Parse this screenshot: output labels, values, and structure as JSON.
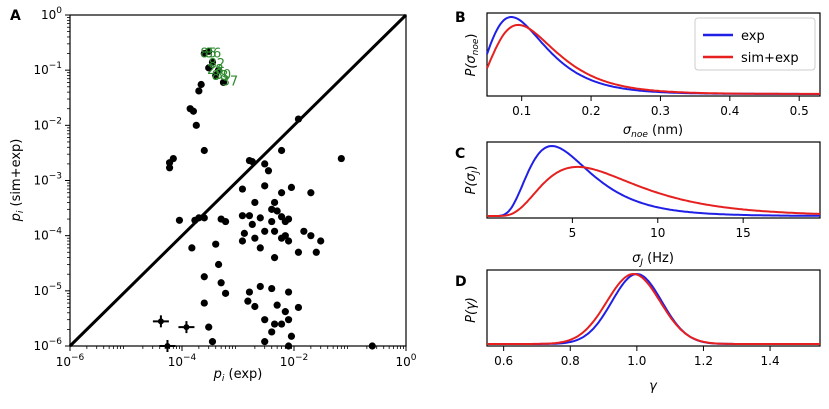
{
  "chart_data": [
    {
      "panel": "A",
      "type": "scatter",
      "xscale": "log",
      "yscale": "log",
      "xlim": [
        1e-06,
        1
      ],
      "ylim": [
        1e-06,
        1
      ],
      "xticks": [
        "10^-6",
        "10^-4",
        "10^-2",
        "10^0"
      ],
      "yticks": [
        "10^-6",
        "10^-5",
        "10^-4",
        "10^-3",
        "10^-2",
        "10^-1",
        "10^0"
      ],
      "xlabel_main": "p",
      "xlabel_sub": "i",
      "xlabel_tail": " (exp)",
      "ylabel_main": "p",
      "ylabel_sub": "i",
      "ylabel_tail": " (sim+exp)",
      "diagonal": true,
      "points": [
        [
          0.00025,
          0.2
        ],
        [
          0.0003,
          0.22
        ],
        [
          0.00035,
          0.14
        ],
        [
          0.0003,
          0.11
        ],
        [
          0.00045,
          0.1
        ],
        [
          0.0004,
          0.08
        ],
        [
          0.00055,
          0.06
        ],
        [
          0.00022,
          0.055
        ],
        [
          0.0002,
          0.042
        ],
        [
          0.00014,
          0.02
        ],
        [
          0.00016,
          0.018
        ],
        [
          0.00018,
          0.01
        ],
        [
          0.00025,
          0.0035
        ],
        [
          0.012,
          0.013
        ],
        [
          7e-05,
          0.0025
        ],
        [
          6e-05,
          0.0021
        ],
        [
          6e-05,
          0.0017
        ],
        [
          0.07,
          0.0025
        ],
        [
          0.0016,
          0.0023
        ],
        [
          0.0018,
          0.0022
        ],
        [
          0.003,
          0.002
        ],
        [
          0.006,
          0.0035
        ],
        [
          0.0035,
          0.0015
        ],
        [
          0.0012,
          0.0007
        ],
        [
          0.003,
          0.0008
        ],
        [
          0.006,
          0.0006
        ],
        [
          0.002,
          0.0004
        ],
        [
          0.0045,
          0.0004
        ],
        [
          0.009,
          0.00075
        ],
        [
          0.02,
          0.0006
        ],
        [
          0.004,
          0.0003
        ],
        [
          9e-05,
          0.00019
        ],
        [
          0.00017,
          0.00019
        ],
        [
          0.00025,
          0.00021
        ],
        [
          0.0002,
          0.00021
        ],
        [
          0.0006,
          0.00018
        ],
        [
          0.0005,
          0.0002
        ],
        [
          0.0012,
          0.00023
        ],
        [
          0.0013,
          0.00011
        ],
        [
          0.0016,
          0.00023
        ],
        [
          0.0018,
          0.00016
        ],
        [
          0.0025,
          0.00021
        ],
        [
          0.003,
          0.00012
        ],
        [
          0.004,
          0.00018
        ],
        [
          0.005,
          0.00028
        ],
        [
          0.006,
          0.00022
        ],
        [
          0.007,
          0.00018
        ],
        [
          0.008,
          0.0002
        ],
        [
          0.00015,
          6e-05
        ],
        [
          0.0004,
          7e-05
        ],
        [
          0.0012,
          8e-05
        ],
        [
          0.002,
          9e-05
        ],
        [
          0.0025,
          6e-05
        ],
        [
          0.0045,
          0.00012
        ],
        [
          0.006,
          9e-05
        ],
        [
          0.007,
          0.0001
        ],
        [
          0.008,
          8e-05
        ],
        [
          0.015,
          0.00012
        ],
        [
          0.02,
          0.0001
        ],
        [
          0.012,
          5e-05
        ],
        [
          0.0045,
          4e-05
        ],
        [
          0.03,
          8e-05
        ],
        [
          0.025,
          5e-05
        ],
        [
          0.00045,
          3e-05
        ],
        [
          0.00025,
          1.8e-05
        ],
        [
          0.0005,
          1.4e-05
        ],
        [
          0.0025,
          1.2e-05
        ],
        [
          0.0006,
          9e-06
        ],
        [
          0.0016,
          9.5e-06
        ],
        [
          0.004,
          1.1e-05
        ],
        [
          0.008,
          9.5e-06
        ],
        [
          0.00025,
          6e-06
        ],
        [
          0.0015,
          6.5e-06
        ],
        [
          0.002,
          5.2e-06
        ],
        [
          0.005,
          5.5e-06
        ],
        [
          0.007,
          4.2e-06
        ],
        [
          0.012,
          5e-06
        ],
        [
          0.008,
          3e-06
        ],
        [
          0.003,
          3e-06
        ],
        [
          0.006,
          2.5e-06
        ],
        [
          0.0045,
          2.5e-06
        ],
        [
          0.0003,
          2.2e-06
        ],
        [
          0.004,
          1.8e-06
        ],
        [
          0.009,
          1.5e-06
        ],
        [
          0.003,
          1.2e-06
        ],
        [
          0.00035,
          1.2e-06
        ],
        [
          0.008,
          1e-06
        ],
        [
          0.25,
          1e-06
        ]
      ],
      "error_points": [
        [
          4.2e-05,
          2.8e-06
        ],
        [
          5.5e-05,
          1e-06
        ],
        [
          0.00012,
          2.2e-06
        ]
      ],
      "labels": [
        {
          "text": "85",
          "x": 0.00025,
          "y": 0.2
        },
        {
          "text": "86",
          "x": 0.0003,
          "y": 0.2
        },
        {
          "text": "82",
          "x": 0.00035,
          "y": 0.13
        },
        {
          "text": "28",
          "x": 0.00033,
          "y": 0.1
        },
        {
          "text": "88",
          "x": 0.0004,
          "y": 0.078
        },
        {
          "text": "30",
          "x": 0.00045,
          "y": 0.082
        },
        {
          "text": "37",
          "x": 0.0006,
          "y": 0.062
        }
      ]
    },
    {
      "panel": "B",
      "type": "line",
      "xlabel_main": "σ",
      "xlabel_sub": "noe",
      "xlabel_tail": " (nm)",
      "ylabel": "P(σnoe)",
      "ylabel_main": "P(σ",
      "ylabel_sub": "noe",
      "ylabel_tail": ")",
      "xlim": [
        0.05,
        0.53
      ],
      "xticks": [
        "0.1",
        "0.2",
        "0.3",
        "0.4",
        "0.5"
      ],
      "xtick_values": [
        0.1,
        0.2,
        0.3,
        0.4,
        0.5
      ],
      "series": [
        {
          "name": "exp",
          "color": "#1f1fe6",
          "peak": 0.085,
          "width": 0.05
        },
        {
          "name": "sim+exp",
          "color": "#e61f1f",
          "peak": 0.095,
          "width": 0.055
        }
      ],
      "legend": [
        "exp",
        "sim+exp"
      ],
      "legend_position": "top-right"
    },
    {
      "panel": "C",
      "type": "line",
      "xlabel_main": "σ",
      "xlabel_sub": "J",
      "xlabel_tail": " (Hz)",
      "ylabel": "P(σJ)",
      "ylabel_main": "P(σ",
      "ylabel_sub": "J",
      "ylabel_tail": ")",
      "xlim": [
        0,
        19.5
      ],
      "xticks": [
        "5",
        "10",
        "15"
      ],
      "xtick_values": [
        5,
        10,
        15
      ],
      "series": [
        {
          "name": "exp",
          "color": "#1f1fe6",
          "peak": 3.8,
          "width": 2.3
        },
        {
          "name": "sim+exp",
          "color": "#e61f1f",
          "peak": 5.3,
          "width": 3.6
        }
      ]
    },
    {
      "panel": "D",
      "type": "line",
      "xlabel": "γ",
      "ylabel": "P(γ)",
      "xlim": [
        0.55,
        1.55
      ],
      "xticks": [
        "0.6",
        "0.8",
        "1.0",
        "1.2",
        "1.4"
      ],
      "xtick_values": [
        0.6,
        0.8,
        1.0,
        1.2,
        1.4
      ],
      "series": [
        {
          "name": "exp",
          "color": "#1f1fe6",
          "peak": 1.0,
          "width": 0.075
        },
        {
          "name": "sim+exp",
          "color": "#e61f1f",
          "peak": 0.99,
          "width": 0.08
        }
      ]
    }
  ]
}
